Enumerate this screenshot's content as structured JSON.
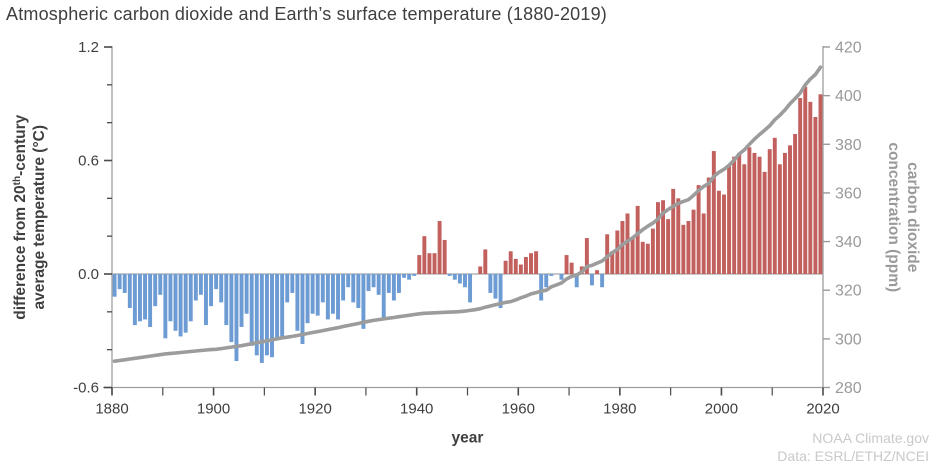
{
  "header": {
    "title": "Atmospheric carbon dioxide and Earth’s surface temperature (1880-2019)"
  },
  "attribution": {
    "line1": "NOAA Climate.gov",
    "line2": "Data: ESRL/ETHZ/NCEI"
  },
  "chart_data": {
    "type": "bar",
    "note": "bar series = temperature anomaly on left axis; line series = CO2 on right axis",
    "years": {
      "start": 1880,
      "end": 2019,
      "step": 1
    },
    "series": [
      {
        "name": "difference from 20th-century average temperature (°C)",
        "type": "bar",
        "axis": "left",
        "values": [
          -0.12,
          -0.08,
          -0.1,
          -0.18,
          -0.27,
          -0.25,
          -0.24,
          -0.28,
          -0.17,
          -0.11,
          -0.34,
          -0.25,
          -0.3,
          -0.33,
          -0.31,
          -0.25,
          -0.14,
          -0.11,
          -0.27,
          -0.17,
          -0.08,
          -0.15,
          -0.27,
          -0.36,
          -0.46,
          -0.28,
          -0.21,
          -0.38,
          -0.43,
          -0.47,
          -0.43,
          -0.44,
          -0.35,
          -0.34,
          -0.15,
          -0.1,
          -0.3,
          -0.37,
          -0.26,
          -0.21,
          -0.22,
          -0.15,
          -0.24,
          -0.21,
          -0.24,
          -0.14,
          -0.07,
          -0.15,
          -0.18,
          -0.29,
          -0.09,
          -0.07,
          -0.11,
          -0.24,
          -0.1,
          -0.14,
          -0.1,
          -0.02,
          -0.03,
          -0.01,
          0.1,
          0.2,
          0.11,
          0.11,
          0.28,
          0.18,
          -0.01,
          -0.03,
          -0.05,
          -0.07,
          -0.15,
          0.0,
          0.04,
          0.13,
          -0.1,
          -0.13,
          -0.18,
          0.07,
          0.12,
          0.08,
          0.05,
          0.09,
          0.11,
          0.12,
          -0.14,
          -0.07,
          -0.01,
          0.0,
          -0.03,
          0.1,
          0.06,
          -0.07,
          0.04,
          0.19,
          -0.06,
          0.02,
          -0.07,
          0.21,
          0.12,
          0.23,
          0.28,
          0.32,
          0.19,
          0.36,
          0.17,
          0.16,
          0.24,
          0.38,
          0.39,
          0.29,
          0.45,
          0.4,
          0.26,
          0.28,
          0.34,
          0.47,
          0.32,
          0.51,
          0.65,
          0.44,
          0.42,
          0.57,
          0.62,
          0.64,
          0.58,
          0.67,
          0.64,
          0.62,
          0.54,
          0.66,
          0.72,
          0.58,
          0.64,
          0.68,
          0.74,
          0.93,
          0.99,
          0.91,
          0.83,
          0.95
        ]
      },
      {
        "name": "carbon dioxide concentration (ppm)",
        "type": "line",
        "axis": "right",
        "values": [
          290.8,
          291.1,
          291.4,
          291.7,
          292.0,
          292.3,
          292.6,
          292.9,
          293.2,
          293.5,
          293.8,
          294.0,
          294.2,
          294.4,
          294.6,
          294.8,
          295.0,
          295.2,
          295.4,
          295.6,
          295.7,
          296.0,
          296.3,
          296.6,
          296.9,
          297.2,
          297.6,
          298.0,
          298.4,
          298.8,
          299.2,
          299.6,
          300.0,
          300.4,
          300.7,
          301.0,
          301.4,
          301.8,
          302.2,
          302.6,
          303.0,
          303.4,
          303.8,
          304.2,
          304.6,
          305.1,
          305.5,
          305.9,
          306.3,
          306.8,
          307.2,
          307.6,
          307.9,
          308.2,
          308.5,
          308.8,
          309.1,
          309.4,
          309.7,
          310.0,
          310.3,
          310.5,
          310.6,
          310.7,
          310.8,
          310.9,
          311.0,
          311.1,
          311.2,
          311.4,
          311.7,
          312.0,
          312.4,
          313.0,
          313.5,
          314.0,
          314.5,
          315.0,
          315.3,
          316.0,
          316.9,
          317.6,
          318.5,
          319.0,
          319.6,
          320.0,
          321.4,
          322.2,
          323.0,
          324.6,
          325.7,
          326.3,
          327.5,
          329.7,
          330.2,
          331.1,
          332.0,
          333.8,
          335.4,
          336.8,
          338.8,
          340.1,
          341.5,
          343.2,
          344.9,
          346.3,
          347.6,
          349.3,
          351.7,
          353.2,
          354.5,
          355.7,
          356.5,
          357.2,
          359.0,
          361.0,
          362.7,
          363.9,
          366.8,
          368.5,
          369.7,
          371.3,
          373.5,
          376.0,
          377.7,
          380.0,
          382.1,
          384.0,
          385.8,
          387.6,
          390.1,
          391.9,
          394.1,
          396.7,
          398.8,
          401.0,
          404.4,
          406.8,
          408.7,
          411.7
        ]
      }
    ],
    "axes": {
      "left": {
        "title_part1": "difference from 20",
        "title_sup": "th",
        "title_part2": "-century",
        "title_line2": "average temperature (°C)",
        "range": [
          -0.6,
          1.2
        ],
        "major_ticks": [
          1.2,
          0.6,
          0.0,
          -0.6
        ],
        "major_tick_labels": [
          "1.2",
          "0.6",
          "0.0",
          "-0.6"
        ],
        "minor_ticks": [
          1.0,
          0.8,
          0.4,
          0.2,
          -0.2,
          -0.4
        ]
      },
      "right": {
        "title_line1": "carbon dioxide",
        "title_line2": "concentration (ppm)",
        "range": [
          280,
          420
        ],
        "ticks": [
          420,
          400,
          380,
          360,
          340,
          320,
          300,
          280
        ],
        "tick_labels": [
          "420",
          "400",
          "380",
          "360",
          "340",
          "320",
          "300",
          "280"
        ]
      },
      "bottom": {
        "title": "year",
        "range": [
          1880,
          2020
        ],
        "major_ticks": [
          1880,
          1900,
          1920,
          1940,
          1960,
          1980,
          2000,
          2020
        ],
        "major_tick_labels": [
          "1880",
          "1900",
          "1920",
          "1940",
          "1960",
          "1980",
          "2000",
          "2020"
        ],
        "minor_ticks": [
          1890,
          1910,
          1930,
          1950,
          1970,
          1990,
          2010
        ]
      }
    },
    "grid": false,
    "legend": "none",
    "colors": {
      "positive_bar": "#c2605e",
      "negative_bar": "#6d9bd3",
      "co2_line": "#9c9c9c",
      "zero_line": "#a6a6a6",
      "axis_line": "#9e9e9e",
      "tick_dark": "#4a4a4a",
      "text_dark": "#3f3f3f",
      "text_gray": "#9a9a9a"
    }
  }
}
